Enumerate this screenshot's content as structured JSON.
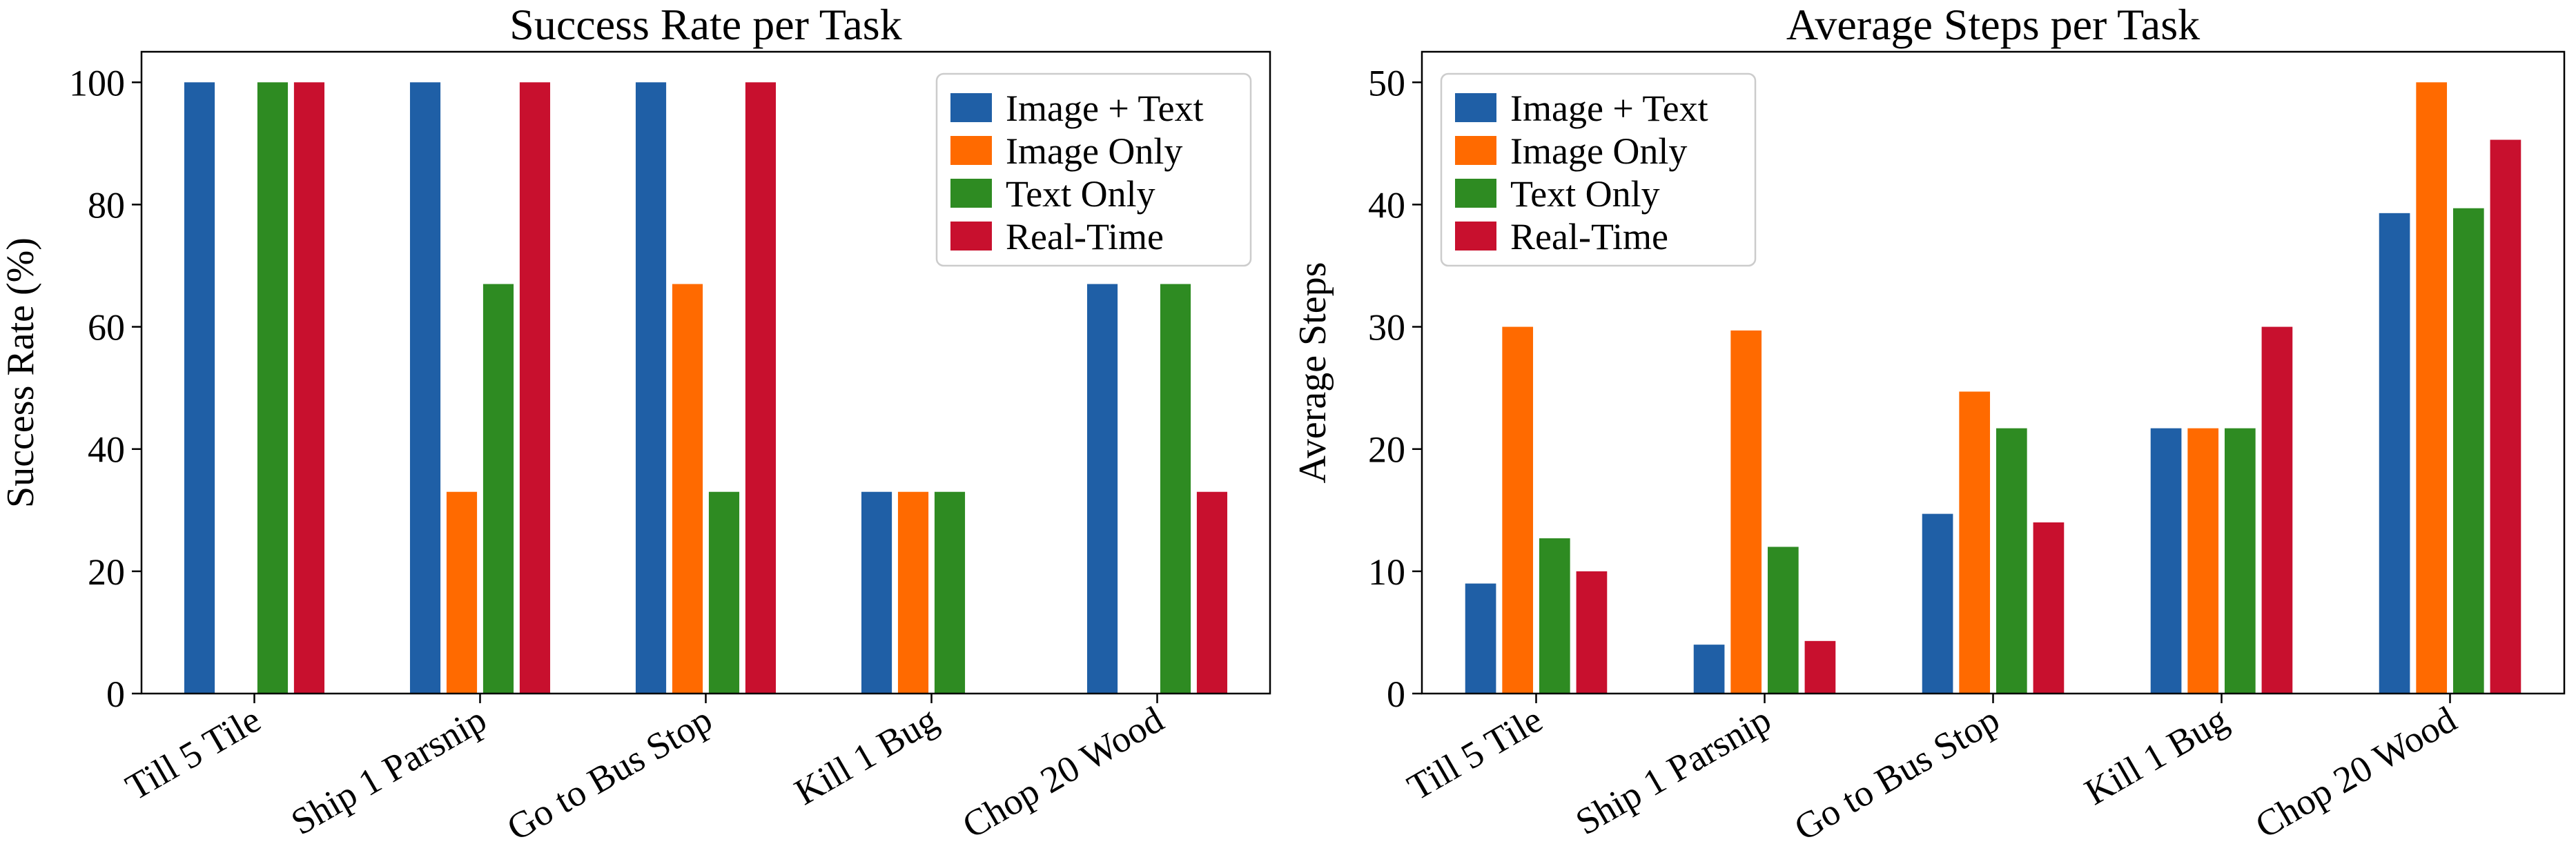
{
  "chart_data": [
    {
      "type": "bar",
      "title": "Success Rate per Task",
      "xlabel": "",
      "ylabel": "Success Rate (%)",
      "ylim": [
        0,
        105
      ],
      "yticks": [
        0,
        20,
        40,
        60,
        80,
        100
      ],
      "categories": [
        "Till 5 Tile",
        "Ship 1 Parsnip",
        "Go to Bus Stop",
        "Kill 1 Bug",
        "Chop 20 Wood"
      ],
      "series": [
        {
          "name": "Image + Text",
          "color": "#1f5fa6",
          "values": [
            100,
            100,
            100,
            33,
            67
          ]
        },
        {
          "name": "Image Only",
          "color": "#ff6a00",
          "values": [
            0,
            33,
            67,
            33,
            0
          ]
        },
        {
          "name": "Text Only",
          "color": "#2e8b22",
          "values": [
            100,
            67,
            33,
            33,
            67
          ]
        },
        {
          "name": "Real-Time",
          "color": "#c8102e",
          "values": [
            100,
            100,
            100,
            0,
            33
          ]
        }
      ],
      "legend_position": "top-right",
      "grid": false
    },
    {
      "type": "bar",
      "title": "Average Steps per Task",
      "xlabel": "",
      "ylabel": "Average Steps",
      "ylim": [
        0,
        52.5
      ],
      "yticks": [
        0,
        10,
        20,
        30,
        40,
        50
      ],
      "categories": [
        "Till 5 Tile",
        "Ship 1 Parsnip",
        "Go to Bus Stop",
        "Kill 1 Bug",
        "Chop 20 Wood"
      ],
      "series": [
        {
          "name": "Image + Text",
          "color": "#1f5fa6",
          "values": [
            9.0,
            4.0,
            14.7,
            21.7,
            39.3
          ]
        },
        {
          "name": "Image Only",
          "color": "#ff6a00",
          "values": [
            30.0,
            29.7,
            24.7,
            21.7,
            50.0
          ]
        },
        {
          "name": "Text Only",
          "color": "#2e8b22",
          "values": [
            12.7,
            12.0,
            21.7,
            21.7,
            39.7
          ]
        },
        {
          "name": "Real-Time",
          "color": "#c8102e",
          "values": [
            10.0,
            4.3,
            14.0,
            30.0,
            45.3
          ]
        }
      ],
      "legend_position": "top-left",
      "grid": false
    }
  ]
}
